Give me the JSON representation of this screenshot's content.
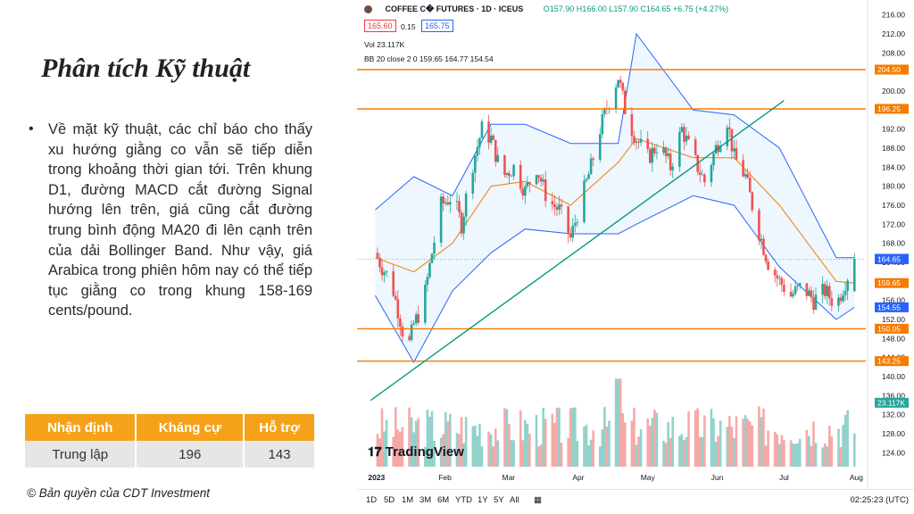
{
  "slide": {
    "title": "Phân tích Kỹ thuật",
    "bullet": "Về mặt kỹ thuật, các chỉ báo cho thấy xu hướng giằng co vẫn sẽ tiếp diễn trong khoảng thời gian tới. Trên khung D1, đường MACD cắt đường Signal hướng lên trên, giá cũng cắt đường trung bình động MA20 đi lên cạnh trên của dải Bollinger Band. Như vậy, giá Arabica trong phiên hôm nay có thể tiếp tục giằng co trong khung 158-169 cents/pound.",
    "bullet_dot": "•",
    "copyright": "© Bản quyền của CDT Investment",
    "table": {
      "headers": [
        "Nhận định",
        "Kháng cự",
        "Hỗ trợ"
      ],
      "row": [
        "Trung lập",
        "196",
        "143"
      ]
    },
    "accent_color": "#f5a21a"
  },
  "tv": {
    "symbol": "COFFEE C� FUTURES · 1D · ICEUS",
    "ohlc": "O157.90 H166.00 L157.90 C164.65 +6.75 (+4.27%)",
    "bid": "165.60",
    "spread": "0.15",
    "ask": "165.75",
    "vol_label": "Vol 23.117K",
    "bb_label": "BB 20 close 2 0 159.65 164.77 154.54",
    "logo": "TradingView",
    "utc": "02:25:23 (UTC)",
    "timeframes": [
      "1D",
      "5D",
      "1M",
      "3M",
      "6M",
      "YTD",
      "1Y",
      "5Y",
      "All"
    ],
    "year_label": "2023"
  },
  "chart_data": {
    "type": "candlestick",
    "symbol": "COFFEE C FUTURES",
    "interval": "1D",
    "ylim": [
      122,
      218
    ],
    "y_ticks": [
      124,
      128,
      132,
      136,
      140,
      144,
      148,
      152,
      156,
      160,
      164,
      168,
      172,
      176,
      180,
      184,
      188,
      192,
      196,
      200,
      204,
      208,
      212,
      216
    ],
    "x_labels": [
      "2023",
      "Feb",
      "Mar",
      "Apr",
      "May",
      "Jun",
      "Jul",
      "Aug"
    ],
    "last_price": 164.65,
    "horizontal_levels": [
      204.5,
      196.25,
      150.05,
      143.25
    ],
    "price_tags": [
      {
        "label": "204.50",
        "value": 204.5,
        "color": "#f57c00"
      },
      {
        "label": "196.25",
        "value": 196.25,
        "color": "#f57c00"
      },
      {
        "label": "164.75",
        "value": 164.75,
        "color": "#2962ff"
      },
      {
        "label": "164.65",
        "value": 164.65,
        "color": "#2962ff"
      },
      {
        "label": "159.65",
        "value": 159.65,
        "color": "#f57c00"
      },
      {
        "label": "154.55",
        "value": 154.55,
        "color": "#2962ff"
      },
      {
        "label": "150.05",
        "value": 150.05,
        "color": "#f57c00"
      },
      {
        "label": "143.25",
        "value": 143.25,
        "color": "#f57c00"
      },
      {
        "label": "23.117K",
        "value": 134.5,
        "color": "#26a69a"
      }
    ],
    "trendline": {
      "from": {
        "x": "2022-12-30",
        "y": 135
      },
      "to": {
        "x": "2023-06-30",
        "y": 198
      }
    },
    "close_path": [
      [
        "2023-01-01",
        166
      ],
      [
        "2023-01-04",
        163
      ],
      [
        "2023-01-08",
        160
      ],
      [
        "2023-01-12",
        152
      ],
      [
        "2023-01-15",
        145
      ],
      [
        "2023-01-18",
        151
      ],
      [
        "2023-01-22",
        155
      ],
      [
        "2023-01-26",
        166
      ],
      [
        "2023-01-30",
        176
      ],
      [
        "2023-02-04",
        178
      ],
      [
        "2023-02-08",
        172
      ],
      [
        "2023-02-12",
        183
      ],
      [
        "2023-02-17",
        192
      ],
      [
        "2023-02-21",
        190
      ],
      [
        "2023-02-26",
        182
      ],
      [
        "2023-03-03",
        184
      ],
      [
        "2023-03-08",
        179
      ],
      [
        "2023-03-13",
        184
      ],
      [
        "2023-03-18",
        177
      ],
      [
        "2023-03-23",
        175
      ],
      [
        "2023-03-28",
        169
      ],
      [
        "2023-04-01",
        176
      ],
      [
        "2023-04-06",
        184
      ],
      [
        "2023-04-10",
        192
      ],
      [
        "2023-04-14",
        198
      ],
      [
        "2023-04-18",
        203
      ],
      [
        "2023-04-22",
        194
      ],
      [
        "2023-04-26",
        190
      ],
      [
        "2023-05-01",
        186
      ],
      [
        "2023-05-06",
        189
      ],
      [
        "2023-05-11",
        184
      ],
      [
        "2023-05-16",
        192
      ],
      [
        "2023-05-21",
        186
      ],
      [
        "2023-05-26",
        181
      ],
      [
        "2023-05-31",
        188
      ],
      [
        "2023-06-05",
        194
      ],
      [
        "2023-06-08",
        186
      ],
      [
        "2023-06-13",
        182
      ],
      [
        "2023-06-18",
        172
      ],
      [
        "2023-06-23",
        164
      ],
      [
        "2023-06-28",
        160
      ],
      [
        "2023-07-03",
        157
      ],
      [
        "2023-07-08",
        159
      ],
      [
        "2023-07-13",
        156
      ],
      [
        "2023-07-18",
        158
      ],
      [
        "2023-07-23",
        155
      ],
      [
        "2023-07-27",
        160
      ],
      [
        "2023-07-31",
        164.65
      ]
    ],
    "bollinger": {
      "upper": [
        [
          0,
          175
        ],
        [
          5,
          182
        ],
        [
          9,
          178
        ],
        [
          13,
          193
        ],
        [
          16,
          193
        ],
        [
          20,
          189
        ],
        [
          25,
          189
        ],
        [
          27,
          212
        ],
        [
          32,
          196
        ],
        [
          36,
          195
        ],
        [
          40,
          188
        ],
        [
          45,
          165
        ],
        [
          48,
          165
        ]
      ],
      "middle": [
        [
          0,
          165
        ],
        [
          5,
          162
        ],
        [
          9,
          168
        ],
        [
          13,
          180
        ],
        [
          16,
          181
        ],
        [
          20,
          176
        ],
        [
          25,
          185
        ],
        [
          27,
          190
        ],
        [
          32,
          186
        ],
        [
          36,
          186
        ],
        [
          40,
          176
        ],
        [
          45,
          160
        ],
        [
          48,
          159.65
        ]
      ],
      "lower": [
        [
          0,
          157
        ],
        [
          5,
          143
        ],
        [
          9,
          158
        ],
        [
          13,
          166
        ],
        [
          16,
          171
        ],
        [
          20,
          170
        ],
        [
          25,
          170
        ],
        [
          27,
          172
        ],
        [
          32,
          178
        ],
        [
          36,
          176
        ],
        [
          40,
          163
        ],
        [
          45,
          152
        ],
        [
          48,
          154.54
        ]
      ]
    },
    "volume_label": "Vol 23.117K"
  }
}
